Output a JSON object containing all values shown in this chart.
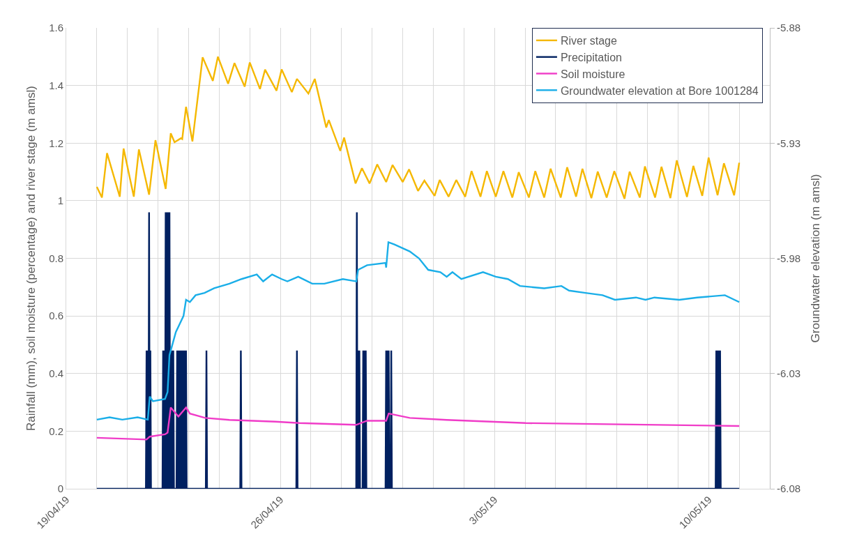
{
  "chart_data": {
    "type": "line",
    "ylabel": "Rainfall (mm), soil moisture (percentage) and river stage (m amsl)",
    "y2label": "Groundwater elevation (m amsl)",
    "xlim": [
      "--04-19",
      "--05-12"
    ],
    "xticks": [
      {
        "value": "--04-19",
        "label": "19/04/19"
      },
      {
        "value": "--04-20",
        "label": null
      },
      {
        "value": "--04-21",
        "label": null
      },
      {
        "value": "--04-22",
        "label": null
      },
      {
        "value": "--04-23",
        "label": null
      },
      {
        "value": "--04-24",
        "label": null
      },
      {
        "value": "--04-25",
        "label": null
      },
      {
        "value": "--04-26",
        "label": "26/04/19"
      },
      {
        "value": "--04-27",
        "label": null
      },
      {
        "value": "--04-28",
        "label": null
      },
      {
        "value": "--04-29",
        "label": null
      },
      {
        "value": "--04-30",
        "label": null
      },
      {
        "value": "--05-01",
        "label": null
      },
      {
        "value": "--05-02",
        "label": null
      },
      {
        "value": "--05-03",
        "label": "3/05/19"
      },
      {
        "value": "--05-04",
        "label": null
      },
      {
        "value": "--05-05",
        "label": null
      },
      {
        "value": "--05-06",
        "label": null
      },
      {
        "value": "--05-07",
        "label": null
      },
      {
        "value": "--05-08",
        "label": null
      },
      {
        "value": "--05-09",
        "label": null
      },
      {
        "value": "--05-10",
        "label": "10/05/19"
      },
      {
        "value": "--05-11",
        "label": null
      }
    ],
    "ylim": [
      0,
      1.6
    ],
    "yticks": [
      0,
      0.2,
      0.4,
      0.6,
      0.8,
      1,
      1.2,
      1.4,
      1.6
    ],
    "y2lim": [
      -6.08,
      -5.88
    ],
    "y2ticks": [
      -6.08,
      -6.03,
      -5.98,
      -5.93,
      -5.88
    ],
    "grid": true,
    "legend": "top right",
    "line_style": "solid",
    "marker": "none",
    "series": [
      {
        "name": "River stage",
        "color": "#f5b800",
        "x": [
          "--04-20T00:00",
          "--04-20T04:00",
          "--04-20T08:00",
          "--04-20T18:00",
          "--04-20T21:00",
          "--04-21T05:00",
          "--04-21T09:00",
          "--04-21T17:00",
          "--04-21T22:00",
          "--04-22T06:00",
          "--04-22T10:00",
          "--04-22T13:00",
          "--04-22T18:00",
          "--04-22T19:00",
          "--04-22T22:00",
          "--04-23T03:00",
          "--04-23T11:00",
          "--04-23T19:00",
          "--04-23T23:00",
          "--04-24T07:00",
          "--04-24T12:00",
          "--04-24T20:00",
          "--04-25T00:00",
          "--04-25T08:00",
          "--04-25T12:00",
          "--04-25T21:00",
          "--04-26T01:00",
          "--04-26T09:00",
          "--04-26T13:00",
          "--04-26T22:00",
          "--04-27T03:00",
          "--04-27T12:00",
          "--04-27T14:00",
          "--04-27T23:00",
          "--04-28T02:00",
          "--04-28T11:00",
          "--04-28T16:00",
          "--04-28T22:00",
          "--04-29T04:00",
          "--04-29T11:00",
          "--04-29T16:00",
          "--04-30T00:00",
          "--04-30T05:00",
          "--04-30T12:00",
          "--04-30T17:00",
          "--05-01T01:00",
          "--05-01T05:00",
          "--05-01T12:00",
          "--05-01T18:00",
          "--05-02T01:00",
          "--05-02T06:00",
          "--05-02T13:00",
          "--05-02T18:00",
          "--05-03T01:00",
          "--05-03T07:00",
          "--05-03T14:00",
          "--05-03T19:00",
          "--05-04T03:00",
          "--05-04T08:00",
          "--05-04T15:00",
          "--05-04T20:00",
          "--05-05T04:00",
          "--05-05T09:00",
          "--05-05T16:00",
          "--05-05T21:00",
          "--05-06T04:00",
          "--05-06T09:00",
          "--05-06T16:00",
          "--05-06T22:00",
          "--05-07T06:00",
          "--05-07T10:00",
          "--05-07T18:00",
          "--05-07T22:00",
          "--05-08T06:00",
          "--05-08T11:00",
          "--05-08T18:00",
          "--05-08T23:00",
          "--05-09T07:00",
          "--05-09T12:00",
          "--05-09T19:00",
          "--05-10T00:00",
          "--05-10T07:00",
          "--05-10T12:00",
          "--05-10T20:00",
          "--05-11T00:00"
        ],
        "values": [
          1.048,
          1.011,
          1.165,
          1.014,
          1.181,
          1.014,
          1.178,
          1.021,
          1.21,
          1.041,
          1.234,
          1.203,
          1.217,
          1.214,
          1.326,
          1.206,
          1.498,
          1.416,
          1.5,
          1.406,
          1.478,
          1.396,
          1.48,
          1.388,
          1.455,
          1.382,
          1.456,
          1.377,
          1.423,
          1.372,
          1.423,
          1.254,
          1.28,
          1.173,
          1.219,
          1.06,
          1.113,
          1.06,
          1.126,
          1.065,
          1.124,
          1.065,
          1.109,
          1.034,
          1.07,
          1.017,
          1.072,
          1.014,
          1.072,
          1.014,
          1.103,
          1.014,
          1.103,
          1.014,
          1.103,
          1.011,
          1.099,
          1.011,
          1.103,
          1.011,
          1.111,
          1.011,
          1.116,
          1.014,
          1.111,
          1.009,
          1.101,
          1.011,
          1.103,
          1.007,
          1.101,
          1.011,
          1.119,
          1.011,
          1.118,
          1.009,
          1.14,
          1.013,
          1.121,
          1.017,
          1.15,
          1.019,
          1.13,
          1.019,
          1.132
        ]
      },
      {
        "name": "Precipitation",
        "color": "#002060",
        "x": [
          "--04-20T00:00",
          "--04-21T14:30",
          "--04-21T15:00",
          "--04-21T15:30",
          "--04-21T16:00",
          "--04-21T16:30",
          "--04-21T17:00",
          "--04-21T17:30",
          "--04-21T18:00",
          "--04-21T18:30",
          "--04-22T03:30",
          "--04-22T04:00",
          "--04-22T04:30",
          "--04-22T05:00",
          "--04-22T05:30",
          "--04-22T06:00",
          "--04-22T06:30",
          "--04-22T07:00",
          "--04-22T07:30",
          "--04-22T08:00",
          "--04-22T08:30",
          "--04-22T09:00",
          "--04-22T09:30",
          "--04-22T10:00",
          "--04-22T10:30",
          "--04-22T11:00",
          "--04-22T11:30",
          "--04-22T12:00",
          "--04-22T12:30",
          "--04-22T14:30",
          "--04-22T15:00",
          "--04-22T15:30",
          "--04-22T16:00",
          "--04-22T16:30",
          "--04-22T17:00",
          "--04-22T17:30",
          "--04-22T18:00",
          "--04-22T18:30",
          "--04-22T19:00",
          "--04-22T19:30",
          "--04-22T20:00",
          "--04-22T20:30",
          "--04-22T21:00",
          "--04-22T21:30",
          "--04-22T22:00",
          "--04-22T22:30",
          "--04-23T13:30",
          "--04-23T14:00",
          "--04-23T14:30",
          "--04-24T16:30",
          "--04-24T17:00",
          "--04-24T17:30",
          "--04-26T12:30",
          "--04-26T13:00",
          "--04-26T13:30",
          "--04-28T11:30",
          "--04-28T12:00",
          "--04-28T12:30",
          "--04-28T13:00",
          "--04-28T13:30",
          "--04-28T14:00",
          "--04-28T14:30",
          "--04-28T16:30",
          "--04-28T17:00",
          "--04-28T17:30",
          "--04-28T18:00",
          "--04-28T18:30",
          "--04-28T19:00",
          "--04-28T19:30",
          "--04-29T10:30",
          "--04-29T11:00",
          "--04-29T11:30",
          "--04-29T12:00",
          "--04-29T12:30",
          "--04-29T13:00",
          "--04-29T13:30",
          "--04-29T14:30",
          "--04-29T15:00",
          "--04-29T15:30",
          "--05-10T05:30",
          "--05-10T06:00",
          "--05-10T06:30",
          "--05-10T07:00",
          "--05-10T07:30",
          "--05-10T08:00",
          "--05-10T08:30",
          "--05-10T09:00",
          "--05-10T09:30",
          "--05-11T00:00"
        ],
        "values": [
          0,
          0,
          0.48,
          0,
          0.48,
          0,
          0.96,
          0,
          0.48,
          0,
          0,
          0.48,
          0,
          0.48,
          0,
          0.96,
          0,
          0.96,
          0,
          0.96,
          0,
          0.96,
          0,
          0.48,
          0,
          0.48,
          0,
          0.48,
          0,
          0,
          0.48,
          0,
          0.48,
          0,
          0.48,
          0,
          0.48,
          0,
          0.48,
          0,
          0.48,
          0,
          0.48,
          0,
          0.48,
          0,
          0,
          0.48,
          0,
          0,
          0.48,
          0,
          0,
          0.48,
          0,
          0,
          0.96,
          0,
          0.48,
          0,
          0.48,
          0,
          0,
          0.48,
          0,
          0.48,
          0,
          0.48,
          0,
          0,
          0.48,
          0,
          0.48,
          0,
          0.48,
          0,
          0,
          0.48,
          0,
          0,
          0.48,
          0,
          0.48,
          0,
          0.48,
          0,
          0.48,
          0,
          0
        ]
      },
      {
        "name": "Soil moisture",
        "color": "#f03cc8",
        "x": [
          "--04-20T00:00",
          "--04-21T15:00",
          "--04-21T17:30",
          "--04-22T05:30",
          "--04-22T07:30",
          "--04-22T10:00",
          "--04-22T16:00",
          "--04-22T22:00",
          "--04-23T01:00",
          "--04-23T13:00",
          "--04-24T08:00",
          "--04-25T20:00",
          "--04-26T15:00",
          "--04-28T11:30",
          "--04-28T20:00",
          "--04-29T11:00",
          "--04-29T13:00",
          "--04-30T05:30",
          "--05-01T10:30",
          "--05-04T00:30",
          "--05-11T00:00"
        ],
        "values": [
          0.177,
          0.171,
          0.181,
          0.189,
          0.195,
          0.282,
          0.251,
          0.282,
          0.261,
          0.246,
          0.239,
          0.233,
          0.228,
          0.222,
          0.236,
          0.236,
          0.261,
          0.246,
          0.239,
          0.228,
          0.218
        ]
      },
      {
        "name": "Groundwater elevation at Bore 1001284",
        "color": "#1aaee8",
        "axis": "y2",
        "x": [
          "--04-20T00:00",
          "--04-20T10:00",
          "--04-20T20:00",
          "--04-21T08:00",
          "--04-21T16:00",
          "--04-21T17:30",
          "--04-21T20:00",
          "--04-22T05:30",
          "--04-22T07:30",
          "--04-22T09:00",
          "--04-22T14:00",
          "--04-22T20:00",
          "--04-22T22:00",
          "--04-23T01:00",
          "--04-23T05:30",
          "--04-23T12:30",
          "--04-23T20:00",
          "--04-24T08:00",
          "--04-24T17:30",
          "--04-25T05:30",
          "--04-25T10:30",
          "--04-25T17:30",
          "--04-26T01:00",
          "--04-26T05:30",
          "--04-26T14:00",
          "--04-27T01:00",
          "--04-27T10:30",
          "--04-28T01:00",
          "--04-28T11:30",
          "--04-28T13:00",
          "--04-28T20:00",
          "--04-29T10:30",
          "--04-29T11:00",
          "--04-29T12:45",
          "--04-29T17:30",
          "--04-30T05:30",
          "--04-30T12:45",
          "--04-30T20:00",
          "--05-01T05:30",
          "--05-01T10:30",
          "--05-01T15:00",
          "--05-01T22:00",
          "--05-02T15:00",
          "--05-03T01:00",
          "--05-03T10:30",
          "--05-03T20:00",
          "--05-04T15:00",
          "--05-05T04:30",
          "--05-05T10:30",
          "--05-05T23:30",
          "--05-06T12:45",
          "--05-06T22:30",
          "--05-07T15:00",
          "--05-07T22:30",
          "--05-08T05:30",
          "--05-09T01:00",
          "--05-09T15:00",
          "--05-10T12:45",
          "--05-11T00:00"
        ],
        "values": [
          -6.05,
          -6.049,
          -6.05,
          -6.049,
          -6.05,
          -6.04,
          -6.042,
          -6.041,
          -6.038,
          -6.022,
          -6.012,
          -6.005,
          -5.998,
          -5.999,
          -5.996,
          -5.995,
          -5.993,
          -5.991,
          -5.989,
          -5.987,
          -5.99,
          -5.987,
          -5.989,
          -5.99,
          -5.988,
          -5.991,
          -5.991,
          -5.989,
          -5.99,
          -5.985,
          -5.983,
          -5.982,
          -5.984,
          -5.973,
          -5.974,
          -5.977,
          -5.98,
          -5.985,
          -5.986,
          -5.988,
          -5.986,
          -5.989,
          -5.986,
          -5.988,
          -5.989,
          -5.992,
          -5.993,
          -5.992,
          -5.994,
          -5.995,
          -5.996,
          -5.998,
          -5.997,
          -5.998,
          -5.997,
          -5.998,
          -5.997,
          -5.996,
          -5.999
        ]
      }
    ]
  }
}
